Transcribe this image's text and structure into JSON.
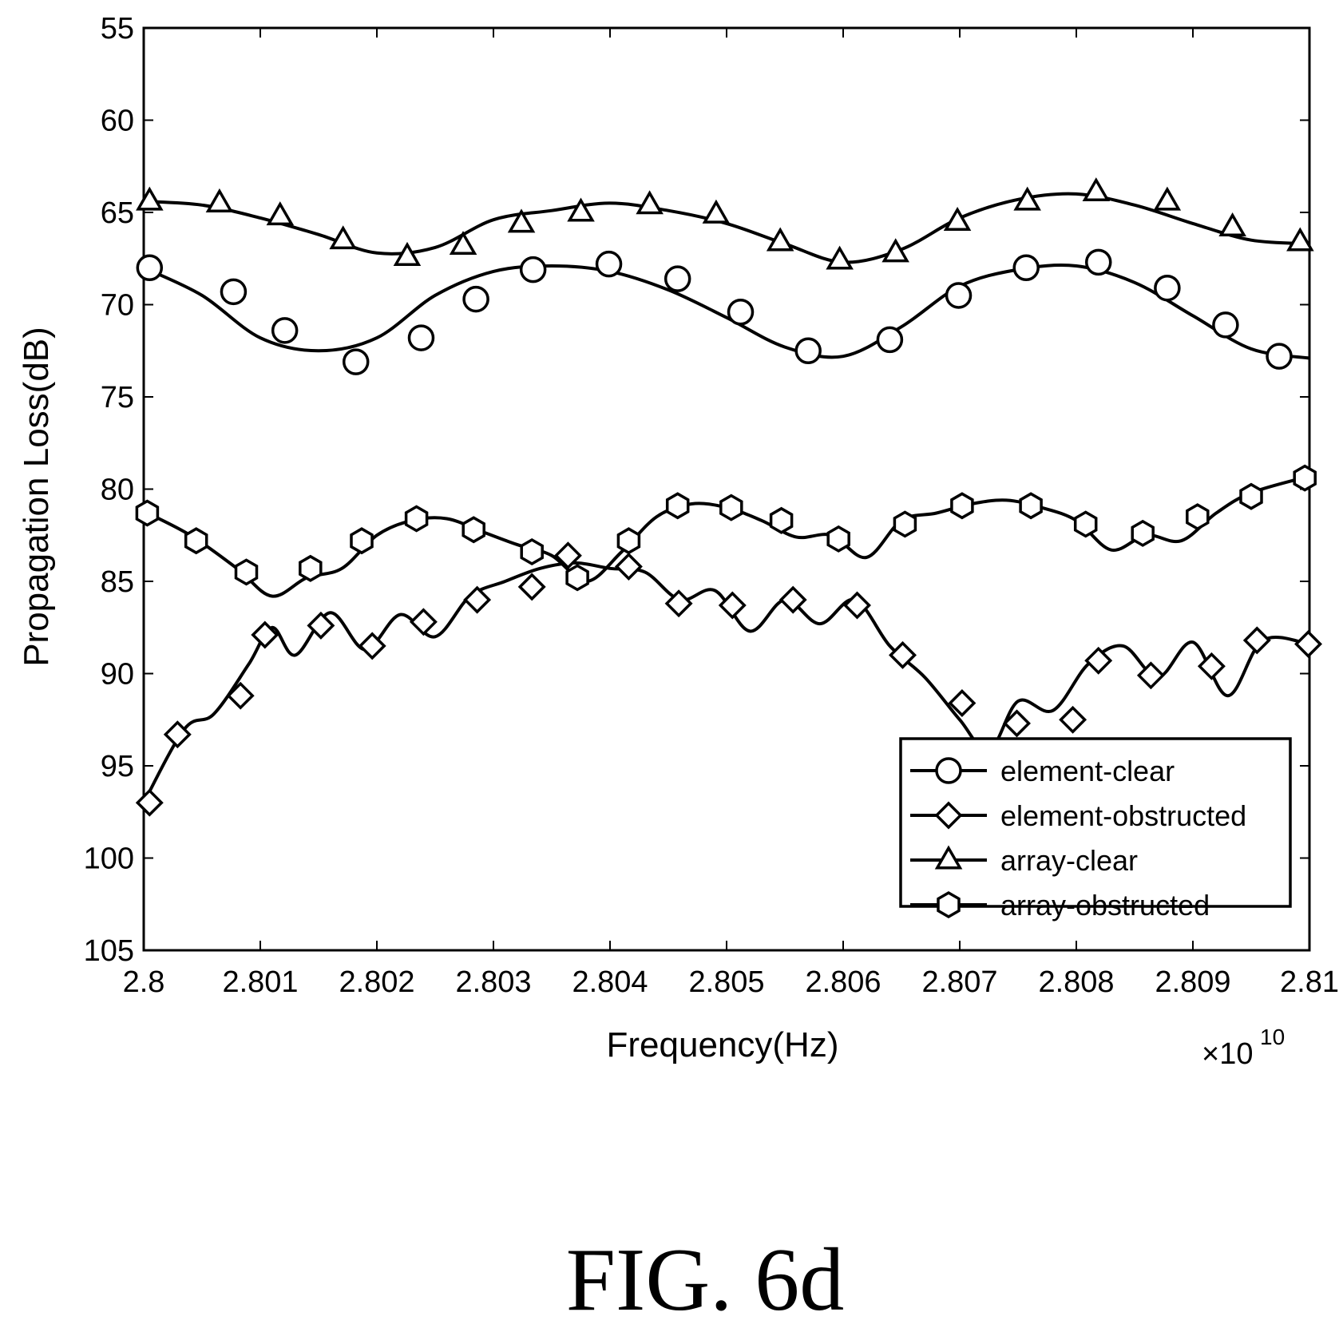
{
  "chart_data": {
    "type": "line",
    "title": "",
    "xlabel": "Frequency(Hz)",
    "ylabel": "Propagation Loss(dB)",
    "x_multiplier": "×10",
    "x_multiplier_exp": "10",
    "xlim": [
      2.8,
      2.81
    ],
    "ylim": [
      55,
      105
    ],
    "y_reversed": true,
    "xticks": [
      "2.8",
      "2.801",
      "2.802",
      "2.803",
      "2.804",
      "2.805",
      "2.806",
      "2.807",
      "2.808",
      "2.809",
      "2.81"
    ],
    "yticks": [
      "55",
      "60",
      "65",
      "70",
      "75",
      "80",
      "85",
      "90",
      "95",
      "100",
      "105"
    ],
    "grid": false,
    "legend_position": "bottom-right",
    "series": [
      {
        "name": "element-clear",
        "marker": "circle",
        "x": [
          2.8,
          2.8005,
          2.801,
          2.8015,
          2.802,
          2.8025,
          2.803,
          2.8035,
          2.804,
          2.8045,
          2.805,
          2.8055,
          2.806,
          2.8065,
          2.807,
          2.8075,
          2.808,
          2.8085,
          2.809,
          2.8095,
          2.81
        ],
        "y": [
          68.0,
          69.5,
          71.8,
          72.5,
          71.8,
          69.5,
          68.2,
          67.9,
          68.2,
          69.2,
          70.7,
          72.3,
          72.8,
          71.2,
          69.0,
          68.1,
          67.9,
          68.8,
          70.6,
          72.4,
          72.9
        ],
        "markers": [
          [
            2.80005,
            68.0
          ],
          [
            2.80077,
            69.3
          ],
          [
            2.80121,
            71.4
          ],
          [
            2.80182,
            73.1
          ],
          [
            2.80238,
            71.8
          ],
          [
            2.80285,
            69.7
          ],
          [
            2.80334,
            68.1
          ],
          [
            2.80399,
            67.8
          ],
          [
            2.80458,
            68.6
          ],
          [
            2.80512,
            70.4
          ],
          [
            2.8057,
            72.5
          ],
          [
            2.8064,
            71.9
          ],
          [
            2.80699,
            69.5
          ],
          [
            2.80757,
            68.0
          ],
          [
            2.80819,
            67.7
          ],
          [
            2.80878,
            69.1
          ],
          [
            2.80928,
            71.1
          ],
          [
            2.80974,
            72.8
          ]
        ]
      },
      {
        "name": "element-obstructed",
        "marker": "diamond",
        "x": [
          2.8,
          2.80035,
          2.8006,
          2.8009,
          2.8011,
          2.8013,
          2.8016,
          2.8019,
          2.8022,
          2.8025,
          2.8028,
          2.8031,
          2.8034,
          2.8037,
          2.804,
          2.8043,
          2.8046,
          2.8049,
          2.8052,
          2.8055,
          2.8058,
          2.8061,
          2.8064,
          2.8067,
          2.807,
          2.80725,
          2.8075,
          2.8078,
          2.8081,
          2.8084,
          2.8087,
          2.809,
          2.8093,
          2.8096,
          2.81
        ],
        "y": [
          97.0,
          93.0,
          92.2,
          89.5,
          87.5,
          89.0,
          86.7,
          88.7,
          86.8,
          88.0,
          85.8,
          85.0,
          84.3,
          84.0,
          84.3,
          84.5,
          86.0,
          85.5,
          87.7,
          86.0,
          87.3,
          86.0,
          88.5,
          90.2,
          92.5,
          94.2,
          91.5,
          92.0,
          89.5,
          88.5,
          90.2,
          88.3,
          91.2,
          88.2,
          88.4
        ],
        "markers": [
          [
            2.80005,
            97.0
          ],
          [
            2.80029,
            93.3
          ],
          [
            2.80083,
            91.2
          ],
          [
            2.80104,
            87.9
          ],
          [
            2.80152,
            87.4
          ],
          [
            2.80196,
            88.5
          ],
          [
            2.8024,
            87.2
          ],
          [
            2.80286,
            86.0
          ],
          [
            2.80333,
            85.3
          ],
          [
            2.80364,
            83.6
          ],
          [
            2.80416,
            84.2
          ],
          [
            2.80459,
            86.2
          ],
          [
            2.80505,
            86.3
          ],
          [
            2.80557,
            86.0
          ],
          [
            2.80612,
            86.3
          ],
          [
            2.80651,
            89.0
          ],
          [
            2.80702,
            91.6
          ],
          [
            2.80749,
            92.7
          ],
          [
            2.80797,
            92.5
          ],
          [
            2.80819,
            89.3
          ],
          [
            2.80864,
            90.1
          ],
          [
            2.80916,
            89.6
          ],
          [
            2.80955,
            88.2
          ],
          [
            2.80999,
            88.4
          ]
        ]
      },
      {
        "name": "array-clear",
        "marker": "triangle",
        "x": [
          2.8,
          2.8005,
          2.801,
          2.8015,
          2.802,
          2.8025,
          2.803,
          2.8035,
          2.804,
          2.8045,
          2.805,
          2.8055,
          2.806,
          2.8065,
          2.807,
          2.8075,
          2.808,
          2.8085,
          2.809,
          2.8095,
          2.81
        ],
        "y": [
          64.4,
          64.6,
          65.3,
          66.2,
          67.2,
          66.9,
          65.4,
          64.9,
          64.5,
          64.9,
          65.6,
          66.7,
          67.7,
          67.0,
          65.3,
          64.3,
          64.0,
          64.6,
          65.6,
          66.5,
          66.7
        ],
        "markers": [
          [
            2.80005,
            64.4
          ],
          [
            2.80065,
            64.5
          ],
          [
            2.80117,
            65.2
          ],
          [
            2.80171,
            66.5
          ],
          [
            2.80226,
            67.4
          ],
          [
            2.80274,
            66.8
          ],
          [
            2.80324,
            65.6
          ],
          [
            2.80375,
            65.0
          ],
          [
            2.80434,
            64.6
          ],
          [
            2.80491,
            65.1
          ],
          [
            2.80546,
            66.6
          ],
          [
            2.80597,
            67.6
          ],
          [
            2.80645,
            67.2
          ],
          [
            2.80698,
            65.5
          ],
          [
            2.80758,
            64.4
          ],
          [
            2.80817,
            63.9
          ],
          [
            2.80878,
            64.4
          ],
          [
            2.80934,
            65.8
          ],
          [
            2.80992,
            66.6
          ]
        ]
      },
      {
        "name": "array-obstructed",
        "marker": "hexagon",
        "x": [
          2.8,
          2.8004,
          2.8008,
          2.8011,
          2.8014,
          2.8017,
          2.802,
          2.8023,
          2.8026,
          2.8029,
          2.8032,
          2.8035,
          2.8038,
          2.8041,
          2.8044,
          2.8047,
          2.805,
          2.8053,
          2.8056,
          2.8059,
          2.8062,
          2.8065,
          2.8068,
          2.8071,
          2.8074,
          2.8077,
          2.808,
          2.8083,
          2.8086,
          2.8089,
          2.8092,
          2.8095,
          2.81
        ],
        "y": [
          81.2,
          82.5,
          84.3,
          85.8,
          84.8,
          84.3,
          82.5,
          81.7,
          81.6,
          82.3,
          83.0,
          83.6,
          85.0,
          83.4,
          81.5,
          80.8,
          81.0,
          81.7,
          82.6,
          82.5,
          83.7,
          81.7,
          81.3,
          80.8,
          80.6,
          81.0,
          81.7,
          83.3,
          82.5,
          82.8,
          81.3,
          80.2,
          79.3
        ],
        "markers": [
          [
            2.80003,
            81.3
          ],
          [
            2.80045,
            82.8
          ],
          [
            2.80088,
            84.5
          ],
          [
            2.80143,
            84.3
          ],
          [
            2.80187,
            82.8
          ],
          [
            2.80234,
            81.6
          ],
          [
            2.80283,
            82.2
          ],
          [
            2.80333,
            83.4
          ],
          [
            2.80372,
            84.8
          ],
          [
            2.80416,
            82.8
          ],
          [
            2.80458,
            80.9
          ],
          [
            2.80504,
            81.0
          ],
          [
            2.80547,
            81.7
          ],
          [
            2.80596,
            82.7
          ],
          [
            2.80653,
            81.9
          ],
          [
            2.80702,
            80.9
          ],
          [
            2.80761,
            80.9
          ],
          [
            2.80808,
            81.9
          ],
          [
            2.80857,
            82.4
          ],
          [
            2.80904,
            81.5
          ],
          [
            2.8095,
            80.4
          ],
          [
            2.80996,
            79.4
          ]
        ]
      }
    ]
  },
  "figure": {
    "caption": "FIG. 6d"
  }
}
